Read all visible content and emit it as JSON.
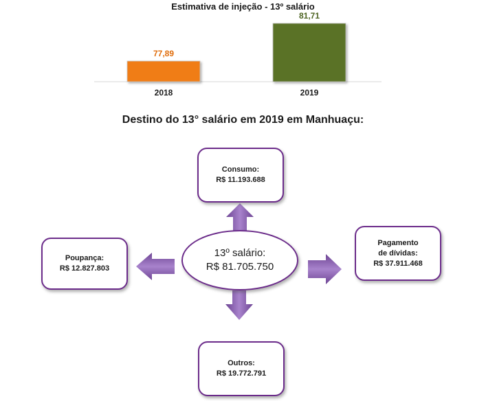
{
  "chart_data": {
    "type": "bar",
    "title": "Estimativa de injeção - 13º salário",
    "categories": [
      "2018",
      "2019"
    ],
    "values": [
      77.89,
      81.71
    ],
    "value_labels": [
      "77,89",
      "81,71"
    ],
    "colors": [
      "#f07d14",
      "#5a7228"
    ],
    "label_colors": [
      "#e06c0a",
      "#4d6422"
    ],
    "grid": false,
    "legend": "none"
  },
  "section_title": "Destino do 13° salário em 2019 em Manhuaçu:",
  "center": {
    "line1": "13º salário:",
    "line2": "R$ 81.705.750"
  },
  "consumo": {
    "label": "Consumo:",
    "value": "R$ 11.193.688"
  },
  "poupanca": {
    "label": "Poupança:",
    "value": "R$ 12.827.803"
  },
  "pagamento": {
    "line1": "Pagamento",
    "line2": "de dívidas:",
    "value": "R$ 37.911.468"
  },
  "outros": {
    "label": "Outros:",
    "value": "R$ 19.772.791"
  },
  "colors": {
    "border": "#6b2b8a",
    "arrow": "#8e63b3"
  }
}
